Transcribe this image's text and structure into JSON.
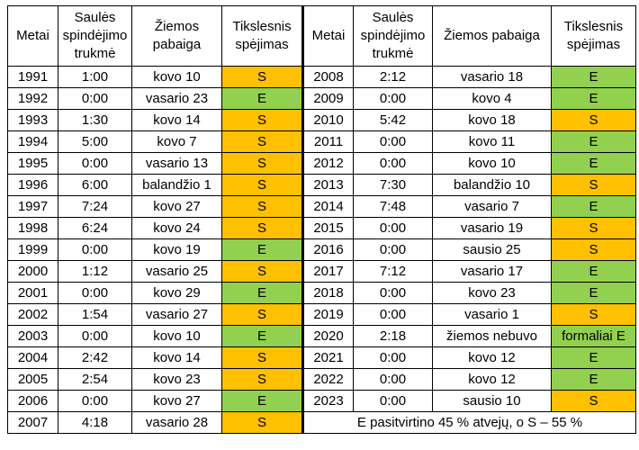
{
  "headers": {
    "year": "Metai",
    "sunshine": "Saulės spindėjimo trukmė",
    "winter_end": "Žiemos pabaiga",
    "prediction": "Tikslesnis spėjimas"
  },
  "colors": {
    "S": "#ffc000",
    "E": "#92d050"
  },
  "left_rows": [
    {
      "year": "1991",
      "sunshine": "1:00",
      "winter_end": "kovo 10",
      "prediction": "S",
      "status": "S"
    },
    {
      "year": "1992",
      "sunshine": "0:00",
      "winter_end": "vasario 23",
      "prediction": "E",
      "status": "E"
    },
    {
      "year": "1993",
      "sunshine": "1:30",
      "winter_end": "kovo 14",
      "prediction": "S",
      "status": "S"
    },
    {
      "year": "1994",
      "sunshine": "5:00",
      "winter_end": "kovo 7",
      "prediction": "S",
      "status": "S"
    },
    {
      "year": "1995",
      "sunshine": "0:00",
      "winter_end": "vasario 13",
      "prediction": "S",
      "status": "S"
    },
    {
      "year": "1996",
      "sunshine": "6:00",
      "winter_end": "balandžio 1",
      "prediction": "S",
      "status": "S"
    },
    {
      "year": "1997",
      "sunshine": "7:24",
      "winter_end": "kovo 27",
      "prediction": "S",
      "status": "S"
    },
    {
      "year": "1998",
      "sunshine": "6:24",
      "winter_end": "kovo 24",
      "prediction": "S",
      "status": "S"
    },
    {
      "year": "1999",
      "sunshine": "0:00",
      "winter_end": "kovo 19",
      "prediction": "E",
      "status": "E"
    },
    {
      "year": "2000",
      "sunshine": "1:12",
      "winter_end": "vasario 25",
      "prediction": "S",
      "status": "S"
    },
    {
      "year": "2001",
      "sunshine": "0:00",
      "winter_end": "kovo 29",
      "prediction": "E",
      "status": "E"
    },
    {
      "year": "2002",
      "sunshine": "1:54",
      "winter_end": "vasario 27",
      "prediction": "S",
      "status": "S"
    },
    {
      "year": "2003",
      "sunshine": "0:00",
      "winter_end": "kovo 10",
      "prediction": "E",
      "status": "E"
    },
    {
      "year": "2004",
      "sunshine": "2:42",
      "winter_end": "kovo 14",
      "prediction": "S",
      "status": "S"
    },
    {
      "year": "2005",
      "sunshine": "2:54",
      "winter_end": "kovo 23",
      "prediction": "S",
      "status": "S"
    },
    {
      "year": "2006",
      "sunshine": "0:00",
      "winter_end": "kovo 27",
      "prediction": "E",
      "status": "E"
    },
    {
      "year": "2007",
      "sunshine": "4:18",
      "winter_end": "vasario 28",
      "prediction": "S",
      "status": "S"
    }
  ],
  "right_rows": [
    {
      "year": "2008",
      "sunshine": "2:12",
      "winter_end": "vasario 18",
      "prediction": "E",
      "status": "E"
    },
    {
      "year": "2009",
      "sunshine": "0:00",
      "winter_end": "kovo 4",
      "prediction": "E",
      "status": "E"
    },
    {
      "year": "2010",
      "sunshine": "5:42",
      "winter_end": "kovo 18",
      "prediction": "S",
      "status": "S"
    },
    {
      "year": "2011",
      "sunshine": "0:00",
      "winter_end": "kovo 11",
      "prediction": "E",
      "status": "E"
    },
    {
      "year": "2012",
      "sunshine": "0:00",
      "winter_end": "kovo 10",
      "prediction": "E",
      "status": "E"
    },
    {
      "year": "2013",
      "sunshine": "7:30",
      "winter_end": "balandžio 10",
      "prediction": "S",
      "status": "S"
    },
    {
      "year": "2014",
      "sunshine": "7:48",
      "winter_end": "vasario 7",
      "prediction": "E",
      "status": "E"
    },
    {
      "year": "2015",
      "sunshine": "0:00",
      "winter_end": "vasario 19",
      "prediction": "S",
      "status": "S"
    },
    {
      "year": "2016",
      "sunshine": "0:00",
      "winter_end": "sausio 25",
      "prediction": "S",
      "status": "S"
    },
    {
      "year": "2017",
      "sunshine": "7:12",
      "winter_end": "vasario 17",
      "prediction": "E",
      "status": "E"
    },
    {
      "year": "2018",
      "sunshine": "0:00",
      "winter_end": "kovo 23",
      "prediction": "E",
      "status": "E"
    },
    {
      "year": "2019",
      "sunshine": "0:00",
      "winter_end": "vasario 1",
      "prediction": "S",
      "status": "S"
    },
    {
      "year": "2020",
      "sunshine": "2:18",
      "winter_end": "žiemos nebuvo",
      "prediction": "formaliai E",
      "status": "E"
    },
    {
      "year": "2021",
      "sunshine": "0:00",
      "winter_end": "kovo 12",
      "prediction": "E",
      "status": "E"
    },
    {
      "year": "2022",
      "sunshine": "0:00",
      "winter_end": "kovo 12",
      "prediction": "E",
      "status": "E"
    },
    {
      "year": "2023",
      "sunshine": "0:00",
      "winter_end": "sausio 10",
      "prediction": "S",
      "status": "S"
    }
  ],
  "summary": "E pasitvirtino 45 % atvejų, o S – 55 %"
}
